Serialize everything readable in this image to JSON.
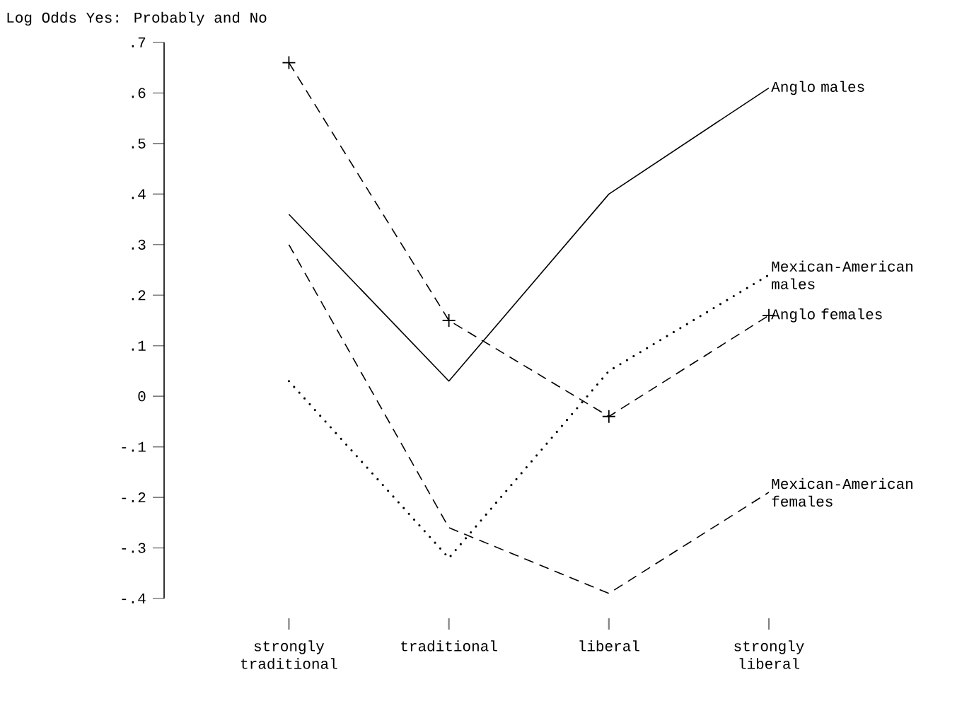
{
  "chart_data": {
    "type": "line",
    "ylabel": "Log Odds  Yes: Probably and No",
    "categories": [
      "strongly traditional",
      "traditional",
      "liberal",
      "strongly liberal"
    ],
    "series": [
      {
        "name": "Anglo males",
        "color": "#000000",
        "values": [
          0.36,
          0.03,
          0.4,
          0.61
        ],
        "line_style": "solid"
      },
      {
        "name": "Mexican-American males",
        "color": "#000000",
        "values": [
          0.03,
          -0.32,
          0.05,
          0.24
        ],
        "line_style": "dotted"
      },
      {
        "name": "Anglo females",
        "color": "#000000",
        "values": [
          0.66,
          0.15,
          -0.04,
          0.16
        ],
        "line_style": "dashed",
        "marker": "cross"
      },
      {
        "name": "Mexican-American females",
        "color": "#000000",
        "values": [
          0.3,
          -0.26,
          -0.39,
          -0.19
        ],
        "line_style": "dashed"
      }
    ],
    "ylim": [
      -0.4,
      0.7
    ],
    "yticks": [
      {
        "value": 0.7,
        "label": ".7"
      },
      {
        "value": 0.6,
        "label": ".6"
      },
      {
        "value": 0.5,
        "label": ".5"
      },
      {
        "value": 0.4,
        "label": ".4"
      },
      {
        "value": 0.3,
        "label": ".3"
      },
      {
        "value": 0.2,
        "label": ".2"
      },
      {
        "value": 0.1,
        "label": ".1"
      },
      0,
      {
        "value": -0.1,
        "label": "-.1"
      },
      {
        "value": -0.2,
        "label": "-.2"
      },
      {
        "value": -0.3,
        "label": "-.3"
      },
      {
        "value": -0.4,
        "label": "-.4"
      }
    ],
    "grid": false,
    "legend": false
  }
}
